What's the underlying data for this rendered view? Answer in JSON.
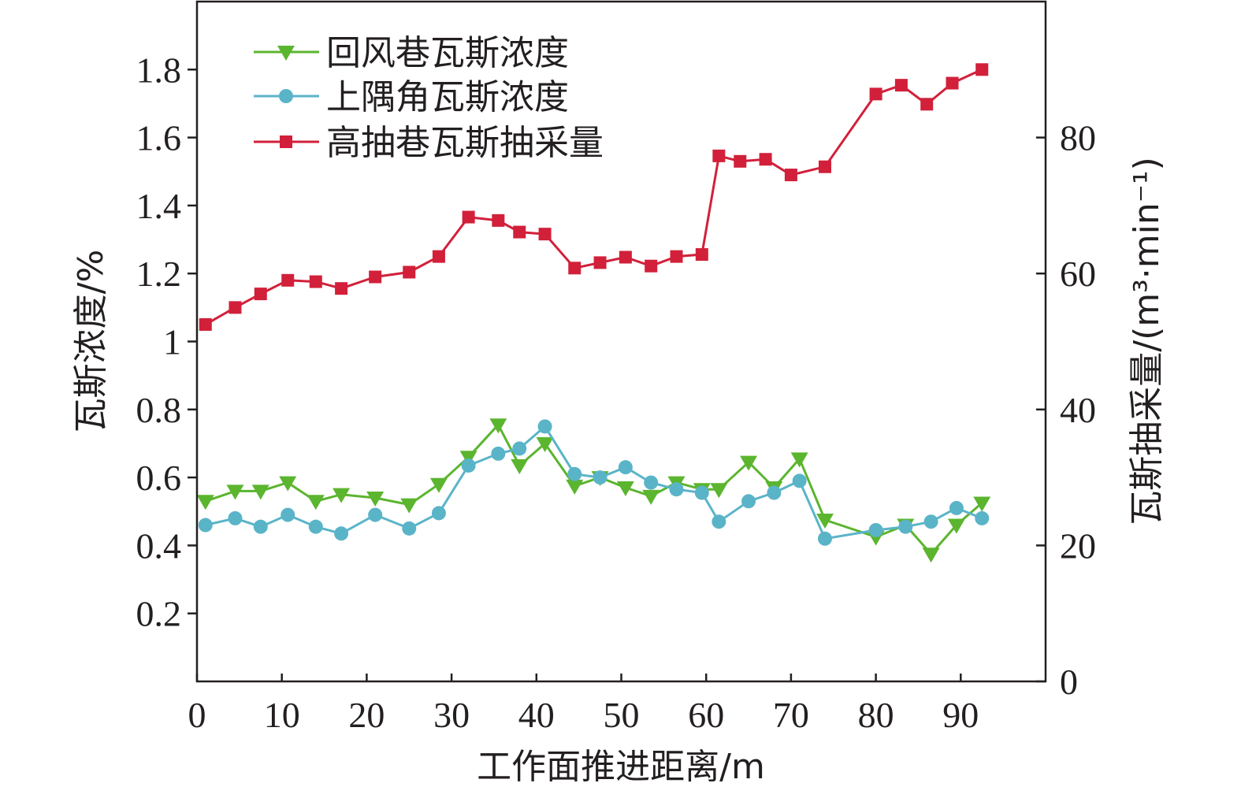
{
  "chart_data": {
    "type": "line",
    "xlabel": "工作面推进距离/m",
    "ylabel_left": "瓦斯浓度/%",
    "ylabel_right": "瓦斯抽采量/(m³·min⁻¹)",
    "xlim": [
      0,
      100
    ],
    "ylim_left": [
      0,
      2.0
    ],
    "ylim_right": [
      0,
      100
    ],
    "x_ticks": [
      0,
      10,
      20,
      30,
      40,
      50,
      60,
      70,
      80,
      90
    ],
    "y_left_ticks": [
      0.2,
      0.4,
      0.6,
      0.8,
      1.0,
      1.2,
      1.4,
      1.6,
      1.8
    ],
    "y_right_ticks": [
      0,
      20,
      40,
      60,
      80
    ],
    "legend_position": "top-left",
    "grid": false,
    "series": [
      {
        "name": "回风巷瓦斯浓度",
        "axis": "left",
        "color": "#5bb52f",
        "marker": "triangle-down",
        "x": [
          1,
          4.5,
          7.5,
          10.7,
          14,
          17,
          21,
          25,
          28.5,
          32,
          35.5,
          38,
          41,
          44.5,
          47.5,
          50.5,
          53.5,
          56.5,
          59.5,
          61.5,
          65,
          68,
          71,
          74,
          80,
          83.5,
          86.5,
          89.5,
          92.5
        ],
        "y": [
          0.53,
          0.56,
          0.56,
          0.585,
          0.53,
          0.55,
          0.54,
          0.52,
          0.58,
          0.66,
          0.755,
          0.635,
          0.7,
          0.575,
          0.6,
          0.57,
          0.545,
          0.585,
          0.565,
          0.565,
          0.645,
          0.57,
          0.655,
          0.475,
          0.425,
          0.46,
          0.375,
          0.46,
          0.525
        ]
      },
      {
        "name": "上隅角瓦斯浓度",
        "axis": "left",
        "color": "#5ab4c8",
        "marker": "circle",
        "x": [
          1,
          4.5,
          7.5,
          10.7,
          14,
          17,
          21,
          25,
          28.5,
          32,
          35.5,
          38,
          41,
          44.5,
          47.5,
          50.5,
          53.5,
          56.5,
          59.5,
          61.5,
          65,
          68,
          71,
          74,
          80,
          83.5,
          86.5,
          89.5,
          92.5
        ],
        "y": [
          0.46,
          0.48,
          0.455,
          0.49,
          0.455,
          0.435,
          0.49,
          0.45,
          0.495,
          0.635,
          0.67,
          0.685,
          0.75,
          0.61,
          0.6,
          0.63,
          0.585,
          0.565,
          0.555,
          0.47,
          0.53,
          0.555,
          0.59,
          0.42,
          0.445,
          0.455,
          0.47,
          0.51,
          0.48
        ]
      },
      {
        "name": "高抽巷瓦斯抽采量",
        "axis": "right",
        "color": "#d2203a",
        "marker": "square",
        "x": [
          1,
          4.5,
          7.5,
          10.7,
          14,
          17,
          21,
          25,
          28.5,
          32,
          35.5,
          38,
          41,
          44.5,
          47.5,
          50.5,
          53.5,
          56.5,
          59.5,
          61.5,
          64,
          67,
          70,
          74,
          80,
          83,
          86,
          89,
          92.5
        ],
        "y": [
          52.5,
          55,
          57,
          59,
          58.8,
          57.8,
          59.5,
          60.2,
          62.5,
          68.3,
          67.8,
          66.1,
          65.8,
          60.8,
          61.6,
          62.4,
          61.1,
          62.5,
          62.8,
          77.3,
          76.5,
          76.8,
          74.5,
          75.7,
          86.4,
          87.7,
          84.9,
          88,
          90
        ]
      }
    ]
  }
}
